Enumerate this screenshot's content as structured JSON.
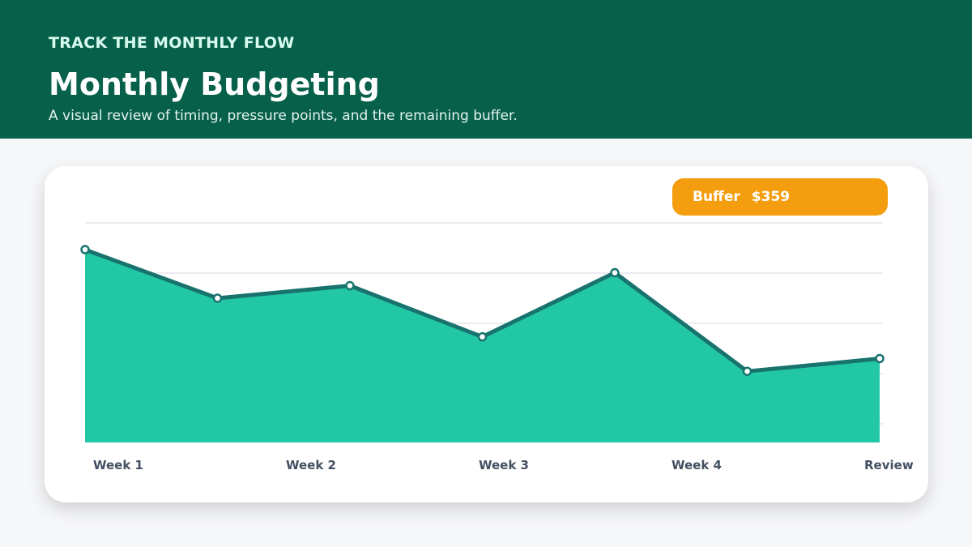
{
  "header": {
    "eyebrow": "TRACK THE MONTHLY FLOW",
    "title": "Monthly Budgeting",
    "subtitle": "A visual review of timing, pressure points, and the remaining buffer."
  },
  "badge": {
    "label": "Buffer",
    "value": "$359"
  },
  "colors": {
    "header_bg": "#07604a",
    "area_fill": "#22c7a6",
    "line": "#18736e",
    "badge": "#f49d0e",
    "grid": "#d4d8e1",
    "tick_label": "#435062"
  },
  "chart_data": {
    "type": "area",
    "x_labels": [
      "Week 1",
      "Week 2",
      "Week 3",
      "Week 4",
      "Review"
    ],
    "values": [
      0.878,
      0.657,
      0.714,
      0.481,
      0.773,
      0.324,
      0.382
    ],
    "ylim": [
      0,
      1
    ],
    "y_gridlines": 5,
    "grid": true,
    "legend": "none"
  }
}
